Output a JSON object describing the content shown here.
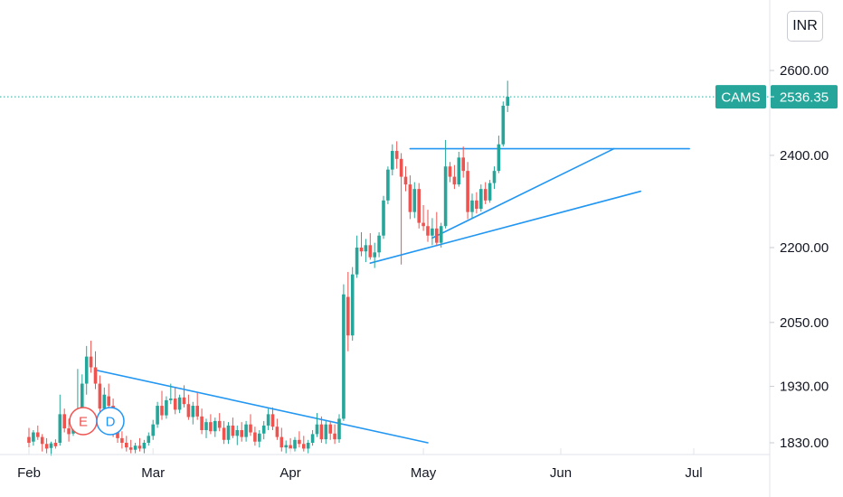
{
  "currency": "INR",
  "colors": {
    "up": "#26a69a",
    "down": "#ef5350",
    "trendline": "#2196f3",
    "last_price": "#26a69a",
    "axis_text": "#131722",
    "grid": "#e0e3eb"
  },
  "chart_data": {
    "type": "candlestick",
    "symbol": "CAMS",
    "last_price": "2536.35",
    "y_scale": "log",
    "y_ticks": [
      "2600.00",
      "2400.00",
      "2200.00",
      "2050.00",
      "1930.00",
      "1830.00"
    ],
    "x_ticks": [
      "Feb",
      "Mar",
      "Apr",
      "May",
      "Jun",
      "Jul"
    ],
    "event_markers": [
      {
        "label": "E",
        "date": "Feb 16",
        "color": "#ef5350"
      },
      {
        "label": "D",
        "date": "Feb 19",
        "color": "#2196f3"
      }
    ],
    "candles": [
      {
        "date": "Feb 01",
        "o": 1840,
        "h": 1856,
        "l": 1822,
        "c": 1830
      },
      {
        "date": "Feb 02",
        "o": 1832,
        "h": 1852,
        "l": 1825,
        "c": 1848
      },
      {
        "date": "Feb 03",
        "o": 1848,
        "h": 1860,
        "l": 1835,
        "c": 1840
      },
      {
        "date": "Feb 04",
        "o": 1840,
        "h": 1845,
        "l": 1815,
        "c": 1828
      },
      {
        "date": "Feb 05",
        "o": 1828,
        "h": 1838,
        "l": 1812,
        "c": 1820
      },
      {
        "date": "Feb 06",
        "o": 1821,
        "h": 1832,
        "l": 1808,
        "c": 1829
      },
      {
        "date": "Feb 07",
        "o": 1830,
        "h": 1836,
        "l": 1820,
        "c": 1824
      },
      {
        "date": "Feb 08",
        "o": 1830,
        "h": 1915,
        "l": 1825,
        "c": 1880
      },
      {
        "date": "Feb 09",
        "o": 1880,
        "h": 1890,
        "l": 1848,
        "c": 1855
      },
      {
        "date": "Feb 10",
        "o": 1855,
        "h": 1872,
        "l": 1832,
        "c": 1845
      },
      {
        "date": "Feb 11",
        "o": 1846,
        "h": 1882,
        "l": 1842,
        "c": 1870
      },
      {
        "date": "Feb 12",
        "o": 1870,
        "h": 1962,
        "l": 1862,
        "c": 1878
      },
      {
        "date": "Feb 13",
        "o": 1880,
        "h": 1952,
        "l": 1865,
        "c": 1935
      },
      {
        "date": "Feb 14",
        "o": 1935,
        "h": 2005,
        "l": 1915,
        "c": 1985
      },
      {
        "date": "Feb 15",
        "o": 1985,
        "h": 2015,
        "l": 1955,
        "c": 1965
      },
      {
        "date": "Feb 16",
        "o": 1965,
        "h": 1995,
        "l": 1925,
        "c": 1935
      },
      {
        "date": "Feb 17",
        "o": 1935,
        "h": 1950,
        "l": 1880,
        "c": 1890
      },
      {
        "date": "Feb 18",
        "o": 1890,
        "h": 1928,
        "l": 1870,
        "c": 1915
      },
      {
        "date": "Feb 19",
        "o": 1912,
        "h": 1935,
        "l": 1880,
        "c": 1895
      },
      {
        "date": "Feb 20",
        "o": 1895,
        "h": 1908,
        "l": 1840,
        "c": 1855
      },
      {
        "date": "Feb 21",
        "o": 1855,
        "h": 1870,
        "l": 1830,
        "c": 1838
      },
      {
        "date": "Feb 22",
        "o": 1838,
        "h": 1850,
        "l": 1820,
        "c": 1830
      },
      {
        "date": "Feb 23",
        "o": 1830,
        "h": 1842,
        "l": 1815,
        "c": 1822
      },
      {
        "date": "Feb 24",
        "o": 1822,
        "h": 1835,
        "l": 1812,
        "c": 1818
      },
      {
        "date": "Feb 25",
        "o": 1818,
        "h": 1830,
        "l": 1812,
        "c": 1825
      },
      {
        "date": "Feb 26",
        "o": 1825,
        "h": 1838,
        "l": 1815,
        "c": 1820
      },
      {
        "date": "Feb 27",
        "o": 1820,
        "h": 1835,
        "l": 1812,
        "c": 1830
      },
      {
        "date": "Feb 28",
        "o": 1830,
        "h": 1848,
        "l": 1825,
        "c": 1842
      },
      {
        "date": "Mar 01",
        "o": 1842,
        "h": 1870,
        "l": 1835,
        "c": 1862
      },
      {
        "date": "Mar 02",
        "o": 1862,
        "h": 1902,
        "l": 1856,
        "c": 1895
      },
      {
        "date": "Mar 03",
        "o": 1895,
        "h": 1922,
        "l": 1870,
        "c": 1878
      },
      {
        "date": "Mar 04",
        "o": 1878,
        "h": 1912,
        "l": 1872,
        "c": 1905
      },
      {
        "date": "Mar 05",
        "o": 1905,
        "h": 1935,
        "l": 1898,
        "c": 1908
      },
      {
        "date": "Mar 06",
        "o": 1908,
        "h": 1928,
        "l": 1880,
        "c": 1888
      },
      {
        "date": "Mar 07",
        "o": 1888,
        "h": 1915,
        "l": 1882,
        "c": 1910
      },
      {
        "date": "Mar 08",
        "o": 1910,
        "h": 1932,
        "l": 1892,
        "c": 1898
      },
      {
        "date": "Mar 09",
        "o": 1898,
        "h": 1915,
        "l": 1870,
        "c": 1875
      },
      {
        "date": "Mar 10",
        "o": 1875,
        "h": 1902,
        "l": 1862,
        "c": 1895
      },
      {
        "date": "Mar 11",
        "o": 1895,
        "h": 1918,
        "l": 1870,
        "c": 1876
      },
      {
        "date": "Mar 12",
        "o": 1876,
        "h": 1890,
        "l": 1845,
        "c": 1852
      },
      {
        "date": "Mar 13",
        "o": 1852,
        "h": 1872,
        "l": 1838,
        "c": 1866
      },
      {
        "date": "Mar 14",
        "o": 1866,
        "h": 1880,
        "l": 1845,
        "c": 1850
      },
      {
        "date": "Mar 15",
        "o": 1850,
        "h": 1874,
        "l": 1840,
        "c": 1868
      },
      {
        "date": "Mar 16",
        "o": 1868,
        "h": 1882,
        "l": 1850,
        "c": 1856
      },
      {
        "date": "Mar 17",
        "o": 1856,
        "h": 1868,
        "l": 1828,
        "c": 1835
      },
      {
        "date": "Mar 18",
        "o": 1835,
        "h": 1866,
        "l": 1828,
        "c": 1860
      },
      {
        "date": "Mar 19",
        "o": 1860,
        "h": 1874,
        "l": 1838,
        "c": 1842
      },
      {
        "date": "Mar 20",
        "o": 1842,
        "h": 1860,
        "l": 1826,
        "c": 1852
      },
      {
        "date": "Mar 21",
        "o": 1852,
        "h": 1866,
        "l": 1832,
        "c": 1840
      },
      {
        "date": "Mar 22",
        "o": 1840,
        "h": 1868,
        "l": 1832,
        "c": 1862
      },
      {
        "date": "Mar 23",
        "o": 1862,
        "h": 1880,
        "l": 1842,
        "c": 1848
      },
      {
        "date": "Mar 24",
        "o": 1848,
        "h": 1858,
        "l": 1825,
        "c": 1832
      },
      {
        "date": "Mar 25",
        "o": 1832,
        "h": 1852,
        "l": 1822,
        "c": 1846
      },
      {
        "date": "Mar 26",
        "o": 1846,
        "h": 1868,
        "l": 1836,
        "c": 1860
      },
      {
        "date": "Mar 27",
        "o": 1860,
        "h": 1890,
        "l": 1852,
        "c": 1880
      },
      {
        "date": "Mar 28",
        "o": 1880,
        "h": 1892,
        "l": 1852,
        "c": 1858
      },
      {
        "date": "Mar 29",
        "o": 1858,
        "h": 1872,
        "l": 1835,
        "c": 1840
      },
      {
        "date": "Mar 30",
        "o": 1840,
        "h": 1856,
        "l": 1815,
        "c": 1822
      },
      {
        "date": "Mar 31",
        "o": 1822,
        "h": 1834,
        "l": 1812,
        "c": 1826
      },
      {
        "date": "Apr 01",
        "o": 1826,
        "h": 1838,
        "l": 1815,
        "c": 1820
      },
      {
        "date": "Apr 02",
        "o": 1820,
        "h": 1840,
        "l": 1815,
        "c": 1835
      },
      {
        "date": "Apr 03",
        "o": 1835,
        "h": 1850,
        "l": 1822,
        "c": 1828
      },
      {
        "date": "Apr 04",
        "o": 1828,
        "h": 1842,
        "l": 1815,
        "c": 1820
      },
      {
        "date": "Apr 05",
        "o": 1820,
        "h": 1835,
        "l": 1812,
        "c": 1830
      },
      {
        "date": "Apr 06",
        "o": 1830,
        "h": 1852,
        "l": 1825,
        "c": 1845
      },
      {
        "date": "Apr 07",
        "o": 1845,
        "h": 1882,
        "l": 1840,
        "c": 1862
      },
      {
        "date": "Apr 08",
        "o": 1862,
        "h": 1876,
        "l": 1830,
        "c": 1836
      },
      {
        "date": "Apr 09",
        "o": 1836,
        "h": 1868,
        "l": 1828,
        "c": 1862
      },
      {
        "date": "Apr 10",
        "o": 1862,
        "h": 1868,
        "l": 1835,
        "c": 1846
      },
      {
        "date": "Apr 11",
        "o": 1846,
        "h": 1862,
        "l": 1828,
        "c": 1836
      },
      {
        "date": "Apr 12",
        "o": 1836,
        "h": 1880,
        "l": 1830,
        "c": 1872
      },
      {
        "date": "Apr 13",
        "o": 1872,
        "h": 2125,
        "l": 1868,
        "c": 2105
      },
      {
        "date": "Apr 14",
        "o": 2100,
        "h": 2150,
        "l": 1995,
        "c": 2025
      },
      {
        "date": "Apr 15",
        "o": 2025,
        "h": 2160,
        "l": 2015,
        "c": 2145
      },
      {
        "date": "Apr 16",
        "o": 2145,
        "h": 2225,
        "l": 2138,
        "c": 2200
      },
      {
        "date": "Apr 17",
        "o": 2200,
        "h": 2232,
        "l": 2182,
        "c": 2192
      },
      {
        "date": "Apr 18",
        "o": 2192,
        "h": 2218,
        "l": 2170,
        "c": 2205
      },
      {
        "date": "Apr 19",
        "o": 2205,
        "h": 2230,
        "l": 2175,
        "c": 2180
      },
      {
        "date": "Apr 20",
        "o": 2180,
        "h": 2210,
        "l": 2158,
        "c": 2190
      },
      {
        "date": "Apr 21",
        "o": 2190,
        "h": 2232,
        "l": 2180,
        "c": 2225
      },
      {
        "date": "Apr 22",
        "o": 2225,
        "h": 2310,
        "l": 2218,
        "c": 2300
      },
      {
        "date": "Apr 23",
        "o": 2300,
        "h": 2375,
        "l": 2292,
        "c": 2368
      },
      {
        "date": "Apr 24",
        "o": 2368,
        "h": 2425,
        "l": 2355,
        "c": 2410
      },
      {
        "date": "Apr 25",
        "o": 2410,
        "h": 2432,
        "l": 2370,
        "c": 2392
      },
      {
        "date": "Apr 26",
        "o": 2392,
        "h": 2405,
        "l": 2165,
        "c": 2352
      },
      {
        "date": "Apr 27",
        "o": 2352,
        "h": 2375,
        "l": 2320,
        "c": 2335
      },
      {
        "date": "Apr 28",
        "o": 2335,
        "h": 2355,
        "l": 2260,
        "c": 2275
      },
      {
        "date": "Apr 29",
        "o": 2275,
        "h": 2340,
        "l": 2262,
        "c": 2325
      },
      {
        "date": "Apr 30",
        "o": 2325,
        "h": 2338,
        "l": 2240,
        "c": 2252
      },
      {
        "date": "May 01",
        "o": 2252,
        "h": 2290,
        "l": 2235,
        "c": 2245
      },
      {
        "date": "May 02",
        "o": 2245,
        "h": 2280,
        "l": 2212,
        "c": 2225
      },
      {
        "date": "May 03",
        "o": 2225,
        "h": 2262,
        "l": 2205,
        "c": 2240
      },
      {
        "date": "May 04",
        "o": 2240,
        "h": 2275,
        "l": 2205,
        "c": 2210
      },
      {
        "date": "May 05",
        "o": 2210,
        "h": 2252,
        "l": 2200,
        "c": 2245
      },
      {
        "date": "May 06",
        "o": 2245,
        "h": 2435,
        "l": 2240,
        "c": 2375
      },
      {
        "date": "May 07",
        "o": 2375,
        "h": 2385,
        "l": 2340,
        "c": 2352
      },
      {
        "date": "May 08",
        "o": 2352,
        "h": 2378,
        "l": 2325,
        "c": 2335
      },
      {
        "date": "May 09",
        "o": 2335,
        "h": 2408,
        "l": 2330,
        "c": 2395
      },
      {
        "date": "May 10",
        "o": 2395,
        "h": 2420,
        "l": 2350,
        "c": 2365
      },
      {
        "date": "May 11",
        "o": 2365,
        "h": 2385,
        "l": 2260,
        "c": 2275
      },
      {
        "date": "May 12",
        "o": 2275,
        "h": 2315,
        "l": 2262,
        "c": 2300
      },
      {
        "date": "May 13",
        "o": 2300,
        "h": 2318,
        "l": 2272,
        "c": 2282
      },
      {
        "date": "May 14",
        "o": 2282,
        "h": 2335,
        "l": 2276,
        "c": 2325
      },
      {
        "date": "May 15",
        "o": 2325,
        "h": 2340,
        "l": 2292,
        "c": 2300
      },
      {
        "date": "May 16",
        "o": 2300,
        "h": 2345,
        "l": 2295,
        "c": 2338
      },
      {
        "date": "May 17",
        "o": 2338,
        "h": 2375,
        "l": 2325,
        "c": 2365
      },
      {
        "date": "May 18",
        "o": 2365,
        "h": 2445,
        "l": 2360,
        "c": 2425
      },
      {
        "date": "May 19",
        "o": 2425,
        "h": 2525,
        "l": 2420,
        "c": 2515
      },
      {
        "date": "May 20",
        "o": 2515,
        "h": 2575,
        "l": 2500,
        "c": 2536.35
      }
    ],
    "trendlines": [
      {
        "from": {
          "date": "Feb 16",
          "price": 1960
        },
        "to": {
          "date": "May 02",
          "price": 1830
        },
        "color": "#2196f3"
      },
      {
        "from": {
          "date": "Apr 28",
          "price": 2415
        },
        "to": {
          "date": "Jun 30",
          "price": 2415
        },
        "color": "#2196f3"
      },
      {
        "from": {
          "date": "May 03",
          "price": 2220
        },
        "to": {
          "date": "Jun 13",
          "price": 2415
        },
        "color": "#2196f3"
      },
      {
        "from": {
          "date": "Apr 19",
          "price": 2168
        },
        "to": {
          "date": "Jun 19",
          "price": 2320
        },
        "color": "#2196f3"
      }
    ]
  }
}
